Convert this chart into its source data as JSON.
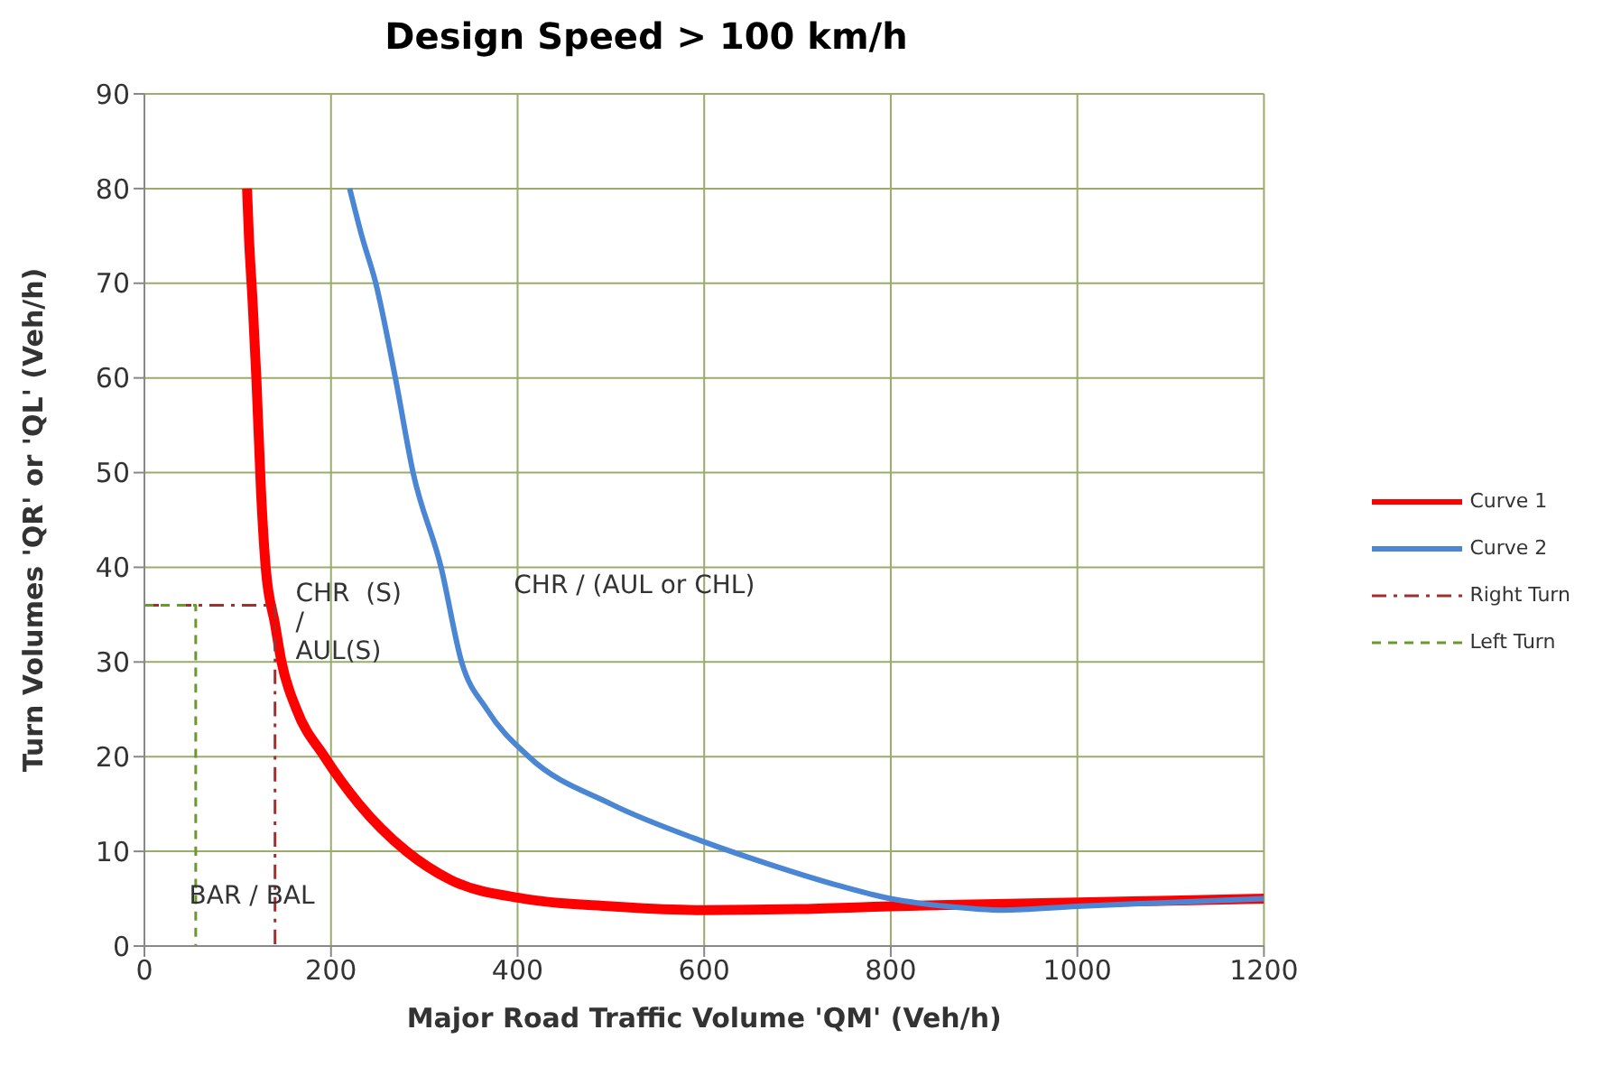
{
  "chart_data": {
    "type": "line",
    "title": "Design Speed > 100 km/h",
    "xlabel": "Major Road Traffic Volume 'QM' (Veh/h)",
    "ylabel": "Turn Volumes 'QR' or 'QL' (Veh/h)",
    "xlim": [
      0,
      1200
    ],
    "xticks": [
      0,
      200,
      400,
      600,
      800,
      1000,
      1200
    ],
    "ylim": [
      0,
      90
    ],
    "yticks": [
      0,
      10,
      20,
      30,
      40,
      50,
      60,
      70,
      80,
      90
    ],
    "grid": true,
    "legend": "right",
    "marker": "none",
    "series": [
      {
        "name": "Curve 1",
        "color": "#ff0000",
        "line_style": "solid",
        "x": [
          110,
          112,
          116,
          120,
          125,
          130,
          140,
          147,
          163,
          193,
          230,
          281,
          328,
          407,
          500,
          600,
          700,
          800,
          900,
          1000,
          1100,
          1200
        ],
        "values": [
          80,
          75,
          68,
          60,
          48,
          40,
          34,
          30,
          25,
          20,
          15,
          10,
          7,
          5,
          4.2,
          3.8,
          3.9,
          4.2,
          4.4,
          4.6,
          4.8,
          5
        ]
      },
      {
        "name": "Curve 2",
        "color": "#4a86d4",
        "line_style": "solid",
        "x": [
          220,
          233,
          248,
          269,
          288,
          318,
          340,
          367,
          412,
          500,
          600,
          674,
          740,
          800,
          860,
          920,
          1000,
          1100,
          1200
        ],
        "values": [
          80,
          75,
          70,
          60,
          50,
          40,
          30,
          25,
          20,
          15,
          11,
          8.5,
          6.5,
          5,
          4.2,
          3.8,
          4.2,
          4.6,
          5
        ]
      },
      {
        "name": "Right Turn",
        "color": "#a0302f",
        "line_style": "dashdot",
        "x": [
          0,
          140,
          140
        ],
        "values": [
          36,
          36,
          0
        ]
      },
      {
        "name": "Left Turn",
        "color": "#6a9a2a",
        "line_style": "dashed",
        "x": [
          0,
          55,
          55
        ],
        "values": [
          36,
          36,
          0
        ]
      }
    ],
    "annotations": [
      "CHR / (AUL or CHL)",
      "CHR  (S)\n/\nAUL(S)",
      "BAR / BAL"
    ]
  }
}
